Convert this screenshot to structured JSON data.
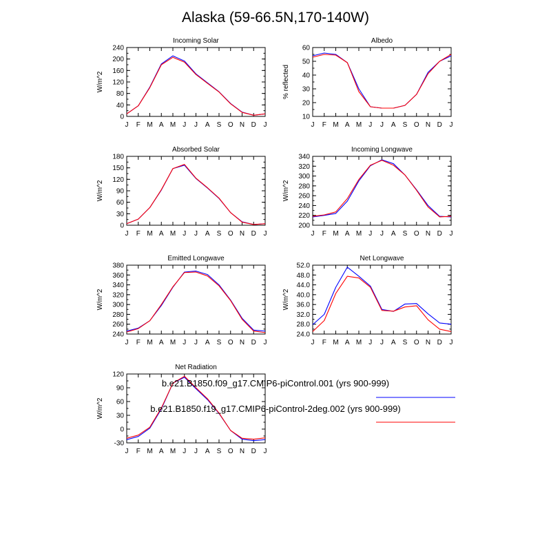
{
  "title": "Alaska (59-66.5N,170-140W)",
  "months": [
    "J",
    "F",
    "M",
    "A",
    "M",
    "J",
    "J",
    "A",
    "S",
    "O",
    "N",
    "D",
    "J"
  ],
  "colors": {
    "case1": "#0000ff",
    "case2": "#ff0000",
    "axis": "#000000"
  },
  "legend": [
    {
      "label": "b.e21.B1850.f09_g17.CMIP6-piControl.001 (yrs 900-999)",
      "color": "#0000ff"
    },
    {
      "label": "b.e21.B1850.f19_g17.CMIP6-piControl-2deg.002 (yrs 900-999)",
      "color": "#ff0000"
    }
  ],
  "chart_data": [
    {
      "type": "line",
      "title": "Incoming Solar",
      "ylabel": "W/m^2",
      "ylim": [
        0,
        240
      ],
      "yticks": [
        "0",
        "40",
        "80",
        "120",
        "160",
        "200",
        "240"
      ],
      "yminor": 20,
      "series": [
        {
          "name": "b.e21.B1850.f09_g17.CMIP6-piControl.001",
          "color": "#0000ff",
          "values": [
            9,
            37,
            102,
            183,
            211,
            193,
            148,
            117,
            86,
            45,
            15,
            4,
            9
          ]
        },
        {
          "name": "b.e21.B1850.f19_g17.CMIP6-piControl-2deg.002",
          "color": "#ff0000",
          "values": [
            9,
            37,
            100,
            180,
            206,
            189,
            146,
            115,
            85,
            44,
            14,
            4,
            9
          ]
        }
      ]
    },
    {
      "type": "line",
      "title": "Albedo",
      "ylabel": "% reflected",
      "ylim": [
        10,
        60
      ],
      "yticks": [
        "10",
        "20",
        "30",
        "40",
        "50",
        "60"
      ],
      "yminor": 5,
      "series": [
        {
          "name": "b.e21.B1850.f09_g17.CMIP6-piControl.001",
          "color": "#0000ff",
          "values": [
            54,
            56,
            55,
            49,
            30,
            17,
            16,
            16,
            18,
            26,
            42,
            50,
            54
          ]
        },
        {
          "name": "b.e21.B1850.f19_g17.CMIP6-piControl-2deg.002",
          "color": "#ff0000",
          "values": [
            53,
            55,
            54.5,
            49,
            28,
            17,
            16,
            16,
            18,
            26,
            41,
            50,
            55
          ]
        }
      ]
    },
    {
      "type": "line",
      "title": "Absorbed Solar",
      "ylabel": "W/m^2",
      "ylim": [
        0,
        180
      ],
      "yticks": [
        "0",
        "30",
        "60",
        "90",
        "120",
        "150",
        "180"
      ],
      "yminor": 15,
      "series": [
        {
          "name": "b.e21.B1850.f09_g17.CMIP6-piControl.001",
          "color": "#0000ff",
          "values": [
            4,
            16,
            46,
            92,
            148,
            157,
            122,
            97,
            70,
            33,
            9,
            2,
            4
          ]
        },
        {
          "name": "b.e21.B1850.f19_g17.CMIP6-piControl-2deg.002",
          "color": "#ff0000",
          "values": [
            4,
            16,
            46,
            93,
            148,
            159,
            123,
            98,
            71,
            33,
            8,
            2,
            4
          ]
        }
      ]
    },
    {
      "type": "line",
      "title": "Incoming Longwave",
      "ylabel": "W/m^2",
      "ylim": [
        200,
        340
      ],
      "yticks": [
        "200",
        "220",
        "240",
        "260",
        "280",
        "300",
        "320",
        "340"
      ],
      "yminor": 10,
      "series": [
        {
          "name": "b.e21.B1850.f09_g17.CMIP6-piControl.001",
          "color": "#0000ff",
          "values": [
            217,
            220,
            224,
            249,
            290,
            321,
            333,
            325,
            302,
            272,
            240,
            218,
            217
          ]
        },
        {
          "name": "b.e21.B1850.f19_g17.CMIP6-piControl-2deg.002",
          "color": "#ff0000",
          "values": [
            218,
            221,
            227,
            254,
            293,
            322,
            332,
            322,
            302,
            271,
            237,
            217,
            218
          ]
        }
      ]
    },
    {
      "type": "line",
      "title": "Emitted Longwave",
      "ylabel": "W/m^2",
      "ylim": [
        240,
        380
      ],
      "yticks": [
        "240",
        "260",
        "280",
        "300",
        "320",
        "340",
        "360",
        "380"
      ],
      "yminor": 10,
      "series": [
        {
          "name": "b.e21.B1850.f09_g17.CMIP6-piControl.001",
          "color": "#0000ff",
          "values": [
            246,
            252,
            267,
            298,
            335,
            366,
            368,
            361,
            340,
            309,
            272,
            248,
            246
          ]
        },
        {
          "name": "b.e21.B1850.f19_g17.CMIP6-piControl-2deg.002",
          "color": "#ff0000",
          "values": [
            244,
            251,
            267,
            300,
            336,
            365,
            366,
            358,
            338,
            308,
            270,
            246,
            243
          ]
        }
      ]
    },
    {
      "type": "line",
      "title": "Net Longwave",
      "ylabel": "W/m^2",
      "ylim": [
        24,
        52
      ],
      "yticks": [
        "24.0",
        "28.0",
        "32.0",
        "36.0",
        "40.0",
        "44.0",
        "48.0",
        "52.0"
      ],
      "yminor": 2,
      "series": [
        {
          "name": "b.e21.B1850.f09_g17.CMIP6-piControl.001",
          "color": "#0000ff",
          "values": [
            27.8,
            32.0,
            43.0,
            51.2,
            47.5,
            43.5,
            34.0,
            33.2,
            36.2,
            36.4,
            32.2,
            28.5,
            28.0
          ]
        },
        {
          "name": "b.e21.B1850.f19_g17.CMIP6-piControl-2deg.002",
          "color": "#ff0000",
          "values": [
            25.0,
            29.5,
            40.5,
            47.5,
            46.8,
            43.0,
            33.6,
            33.3,
            35.0,
            35.5,
            29.8,
            26.0,
            25.0
          ]
        }
      ]
    },
    {
      "type": "line",
      "title": "Net Radiation",
      "ylabel": "W/m^2",
      "ylim": [
        -30,
        120
      ],
      "yticks": [
        "-30",
        "0",
        "30",
        "60",
        "90",
        "120"
      ],
      "yminor": 15,
      "series": [
        {
          "name": "b.e21.B1850.f09_g17.CMIP6-piControl.001",
          "color": "#0000ff",
          "values": [
            -23,
            -16,
            2,
            44,
            100,
            113,
            88,
            64,
            34,
            -3,
            -22,
            -25,
            -23
          ]
        },
        {
          "name": "b.e21.B1850.f19_g17.CMIP6-piControl-2deg.002",
          "color": "#ff0000",
          "values": [
            -20,
            -13,
            4,
            46,
            100,
            115,
            90,
            66,
            35,
            -3,
            -20,
            -22,
            -19
          ]
        }
      ]
    }
  ]
}
